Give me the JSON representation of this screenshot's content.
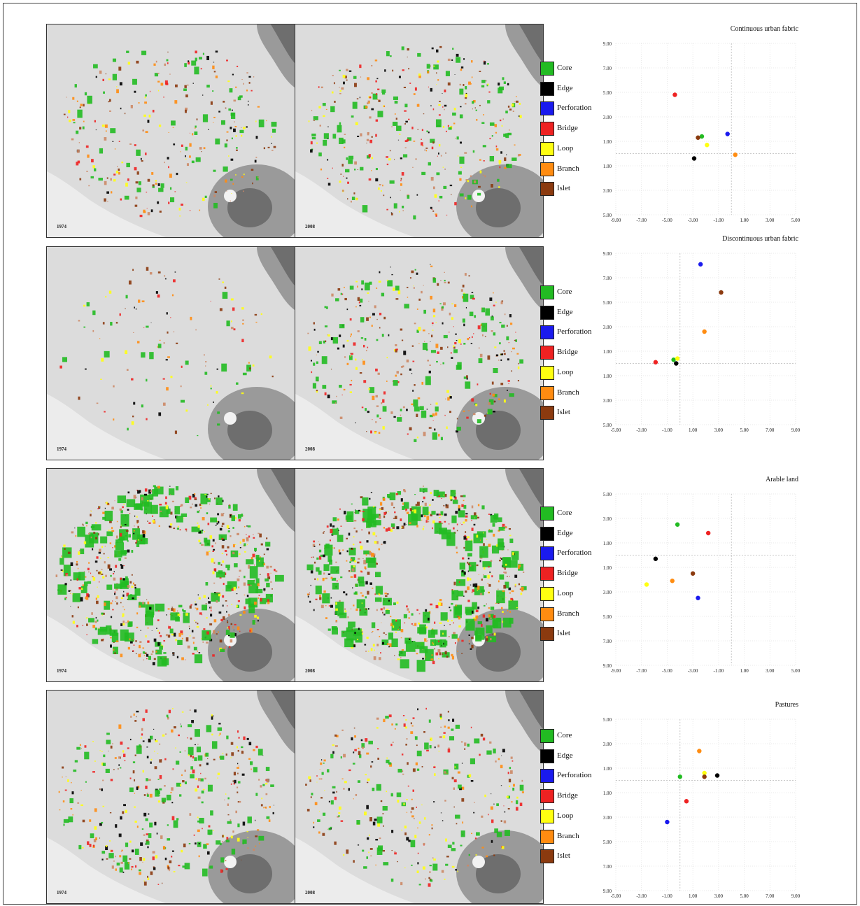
{
  "legend": [
    {
      "label": "Core",
      "color": "#22bb22"
    },
    {
      "label": "Edge",
      "color": "#000000"
    },
    {
      "label": "Perforation",
      "color": "#1a1aee"
    },
    {
      "label": "Bridge",
      "color": "#ee2222"
    },
    {
      "label": "Loop",
      "color": "#ffff11"
    },
    {
      "label": "Branch",
      "color": "#ff8c11"
    },
    {
      "label": "Islet",
      "color": "#8b3a0f"
    }
  ],
  "rows": [
    {
      "left_year": "1974",
      "right_year": "2008",
      "density_left": 0.25,
      "density_right": 0.35
    },
    {
      "left_year": "1974",
      "right_year": "2008",
      "density_left": 0.05,
      "density_right": 0.35
    },
    {
      "left_year": "1974",
      "right_year": "2008",
      "density_left": 0.95,
      "density_right": 0.95
    },
    {
      "left_year": "1974",
      "right_year": "2008",
      "density_left": 0.4,
      "density_right": 0.3
    }
  ],
  "chart_data": [
    {
      "type": "scatter",
      "title": "Continuous urban fabric",
      "xlim": [
        -9,
        5
      ],
      "ylim": [
        -5,
        9
      ],
      "xticks": [
        "-9.00",
        "-7.00",
        "-5.00",
        "-3.00",
        "-1.00",
        "1.00",
        "3.00",
        "5.00"
      ],
      "yticks": [
        "9.00",
        "7.00",
        "5.00",
        "3.00",
        "1.00",
        "-1.00",
        "-3.00",
        "-5.00"
      ],
      "grid": true,
      "points": [
        {
          "name": "Core",
          "x": -2.3,
          "y": 1.4
        },
        {
          "name": "Edge",
          "x": -2.9,
          "y": -0.4
        },
        {
          "name": "Perforation",
          "x": -0.3,
          "y": 1.6
        },
        {
          "name": "Bridge",
          "x": -4.4,
          "y": 4.8
        },
        {
          "name": "Loop",
          "x": -1.9,
          "y": 0.7
        },
        {
          "name": "Branch",
          "x": 0.3,
          "y": -0.1
        },
        {
          "name": "Islet",
          "x": -2.6,
          "y": 1.3
        }
      ]
    },
    {
      "type": "scatter",
      "title": "Discontinuous urban fabric",
      "xlim": [
        -5,
        9
      ],
      "ylim": [
        -5,
        9
      ],
      "xticks": [
        "-5.00",
        "-3.00",
        "-1.00",
        "1.00",
        "3.00",
        "5.00",
        "7.00",
        "9.00"
      ],
      "yticks": [
        "9.00",
        "7.00",
        "5.00",
        "3.00",
        "1.00",
        "-1.00",
        "-3.00",
        "-5.00"
      ],
      "grid": true,
      "points": [
        {
          "name": "Core",
          "x": -0.5,
          "y": 0.3
        },
        {
          "name": "Edge",
          "x": -0.3,
          "y": 0.0
        },
        {
          "name": "Perforation",
          "x": 1.6,
          "y": 8.1
        },
        {
          "name": "Bridge",
          "x": -1.9,
          "y": 0.1
        },
        {
          "name": "Loop",
          "x": -0.2,
          "y": 0.4
        },
        {
          "name": "Branch",
          "x": 1.9,
          "y": 2.6
        },
        {
          "name": "Islet",
          "x": 3.2,
          "y": 5.8
        }
      ]
    },
    {
      "type": "scatter",
      "title": "Arable land",
      "xlim": [
        -9,
        5
      ],
      "ylim": [
        -9,
        5
      ],
      "xticks": [
        "-9.00",
        "-7.00",
        "-5.00",
        "-3.00",
        "-1.00",
        "1.00",
        "3.00",
        "5.00"
      ],
      "yticks": [
        "5.00",
        "3.00",
        "1.00",
        "-1.00",
        "-3.00",
        "-5.00",
        "-7.00",
        "-9.00"
      ],
      "grid": true,
      "points": [
        {
          "name": "Core",
          "x": -4.2,
          "y": 2.5
        },
        {
          "name": "Edge",
          "x": -5.9,
          "y": -0.3
        },
        {
          "name": "Perforation",
          "x": -2.6,
          "y": -3.5
        },
        {
          "name": "Bridge",
          "x": -1.8,
          "y": 1.8
        },
        {
          "name": "Loop",
          "x": -6.6,
          "y": -2.4
        },
        {
          "name": "Branch",
          "x": -4.6,
          "y": -2.1
        },
        {
          "name": "Islet",
          "x": -3.0,
          "y": -1.5
        }
      ]
    },
    {
      "type": "scatter",
      "title": "Pastures",
      "xlim": [
        -5,
        9
      ],
      "ylim": [
        -9,
        5
      ],
      "xticks": [
        "-5.00",
        "-3.00",
        "-1.00",
        "1.00",
        "3.00",
        "5.00",
        "7.00",
        "9.00"
      ],
      "yticks": [
        "5.00",
        "3.00",
        "1.00",
        "-1.00",
        "-3.00",
        "-5.00",
        "-7.00",
        "-9.00"
      ],
      "grid": true,
      "points": [
        {
          "name": "Core",
          "x": 0.0,
          "y": 0.3
        },
        {
          "name": "Edge",
          "x": 2.9,
          "y": 0.4
        },
        {
          "name": "Perforation",
          "x": -1.0,
          "y": -3.4
        },
        {
          "name": "Bridge",
          "x": 0.5,
          "y": -1.7
        },
        {
          "name": "Loop",
          "x": 1.9,
          "y": 0.6
        },
        {
          "name": "Branch",
          "x": 1.5,
          "y": 2.4
        },
        {
          "name": "Islet",
          "x": 1.9,
          "y": 0.3
        }
      ]
    }
  ]
}
